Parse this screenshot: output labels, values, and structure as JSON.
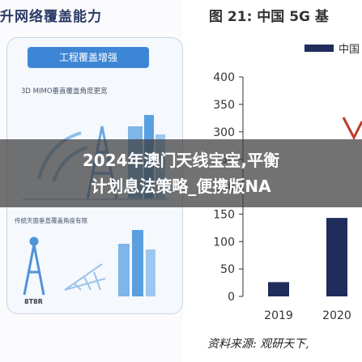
{
  "left_panel": {
    "title": "升网络覆盖能力",
    "banner": "工程覆盖增强",
    "caption_top": "3D MIMO垂直覆盖角度更宽",
    "caption_bottom": "传统天面垂直覆盖角度有限",
    "station_label": "8T8R"
  },
  "chart": {
    "title": "图 21: 中国 5G 基",
    "legend_label": "中国",
    "source_text": "资料来源: 观研天下,",
    "colors": {
      "bar": "#1f2d5c",
      "line": "#c0392b",
      "axis": "#333333"
    }
  },
  "chart_data": {
    "type": "bar",
    "categories": [
      "2019",
      "2020"
    ],
    "values": [
      26,
      143
    ],
    "title": "图 21: 中国 5G 基",
    "xlabel": "",
    "ylabel": "",
    "ylim": [
      0,
      400
    ],
    "yticks": [
      "0",
      "50",
      "100",
      "150",
      "200",
      "250",
      "300",
      "350",
      "400"
    ],
    "legend": {
      "entries": [
        "中国"
      ],
      "placement": "top-right"
    }
  },
  "headline": {
    "line1": "2024年澳门天线宝宝,平衡",
    "line2": "计划息法策略_便携版NA"
  }
}
